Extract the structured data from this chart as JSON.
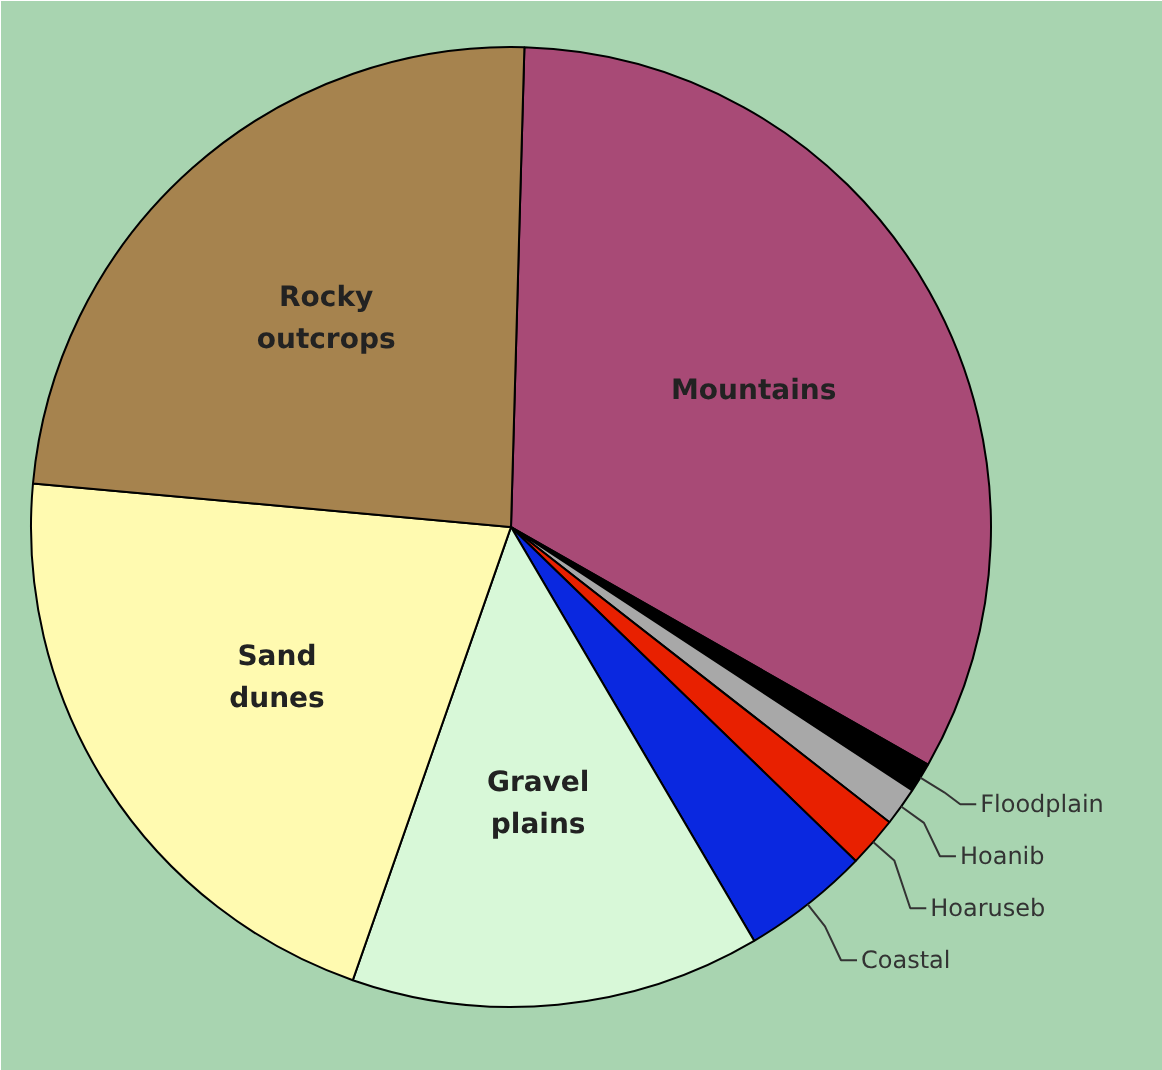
{
  "chart_data": {
    "type": "pie",
    "categories": [
      "Mountains",
      "Floodplain",
      "Hoanib",
      "Hoaruseb",
      "Coastal",
      "Gravel plains",
      "Sand dunes",
      "Rocky outcrops"
    ],
    "values": [
      32.8,
      1.0,
      1.3,
      1.7,
      4.3,
      13.8,
      21.1,
      24.0
    ],
    "colors": [
      "#a84a76",
      "#000000",
      "#a8a8a8",
      "#e82000",
      "#0a28e0",
      "#d8f8d8",
      "#fffab0",
      "#a6834e"
    ]
  }
}
